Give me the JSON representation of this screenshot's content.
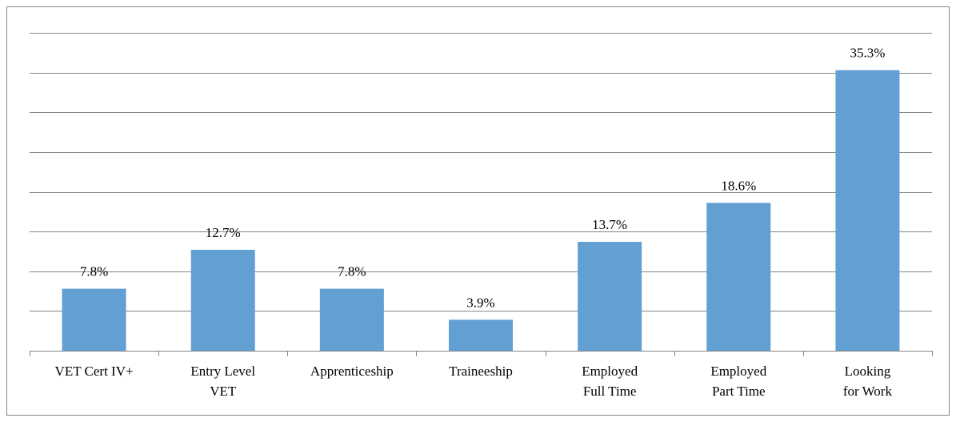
{
  "chart_data": {
    "type": "bar",
    "categories": [
      "VET Cert IV+",
      "Entry Level\nVET",
      "Apprenticeship",
      "Traineeship",
      "Employed\nFull Time",
      "Employed\nPart Time",
      "Looking\nfor Work"
    ],
    "values": [
      7.8,
      12.7,
      7.8,
      3.9,
      13.7,
      18.6,
      35.3
    ],
    "value_labels": [
      "7.8%",
      "12.7%",
      "7.8%",
      "3.9%",
      "13.7%",
      "18.6%",
      "35.3%"
    ],
    "color": "#629fd3",
    "ylim": [
      0,
      40
    ],
    "yticks": [
      0,
      5,
      10,
      15,
      20,
      25,
      30,
      35,
      40
    ],
    "grid": true
  }
}
